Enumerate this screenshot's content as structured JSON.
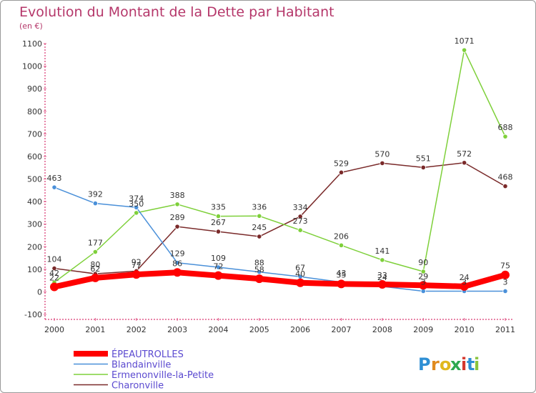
{
  "header": {
    "title": "Evolution du Montant de la Dette par Habitant",
    "unit": "(en €)"
  },
  "logo": {
    "letters": [
      "P",
      "r",
      "o",
      "x",
      "i",
      "t",
      "i"
    ],
    "colors": [
      "#2e8fd4",
      "#e08a1e",
      "#e0b81e",
      "#2ea84f",
      "#d4372e",
      "#2e8fd4",
      "#8ac43e"
    ]
  },
  "chart_data": {
    "type": "line",
    "x": [
      "2000",
      "2001",
      "2002",
      "2003",
      "2004",
      "2005",
      "2006",
      "2007",
      "2008",
      "2009",
      "2010",
      "2011"
    ],
    "yticks": [
      "-100",
      "0",
      "100",
      "200",
      "300",
      "400",
      "500",
      "600",
      "700",
      "800",
      "900",
      "1000",
      "1100"
    ],
    "ylim": [
      -100,
      1100
    ],
    "grid": false,
    "legend_position": "bottom-left",
    "series": [
      {
        "name": "ÉPEAUTROLLES",
        "color": "#ff0000",
        "values": [
          22,
          62,
          77,
          86,
          72,
          58,
          40,
          35,
          33,
          29,
          24,
          75
        ],
        "labels": [
          "22",
          "62",
          "77",
          "86",
          "72",
          "58",
          "40",
          "35",
          "33",
          "29",
          "24",
          "75"
        ]
      },
      {
        "name": "Blandainville",
        "color": "#4a90d9",
        "values": [
          463,
          392,
          374,
          129,
          109,
          88,
          67,
          43,
          24,
          3,
          3,
          3
        ],
        "labels": [
          "463",
          "392",
          "374",
          "129",
          "109",
          "88",
          "67",
          "43",
          "24",
          "3",
          "3",
          "3"
        ]
      },
      {
        "name": "Ermenonville-la-Petite",
        "color": "#7ed03a",
        "values": [
          42,
          177,
          350,
          388,
          335,
          336,
          273,
          206,
          141,
          90,
          1071,
          688
        ],
        "labels": [
          "42",
          "177",
          "350",
          "388",
          "335",
          "336",
          "273",
          "206",
          "141",
          "90",
          "1071",
          "688"
        ]
      },
      {
        "name": "Charonville",
        "color": "#7a2a2a",
        "values": [
          104,
          80,
          92,
          289,
          267,
          245,
          334,
          529,
          570,
          551,
          572,
          468
        ],
        "labels": [
          "104",
          "80",
          "92",
          "289",
          "267",
          "245",
          "334",
          "529",
          "570",
          "551",
          "572",
          "468"
        ]
      }
    ]
  }
}
